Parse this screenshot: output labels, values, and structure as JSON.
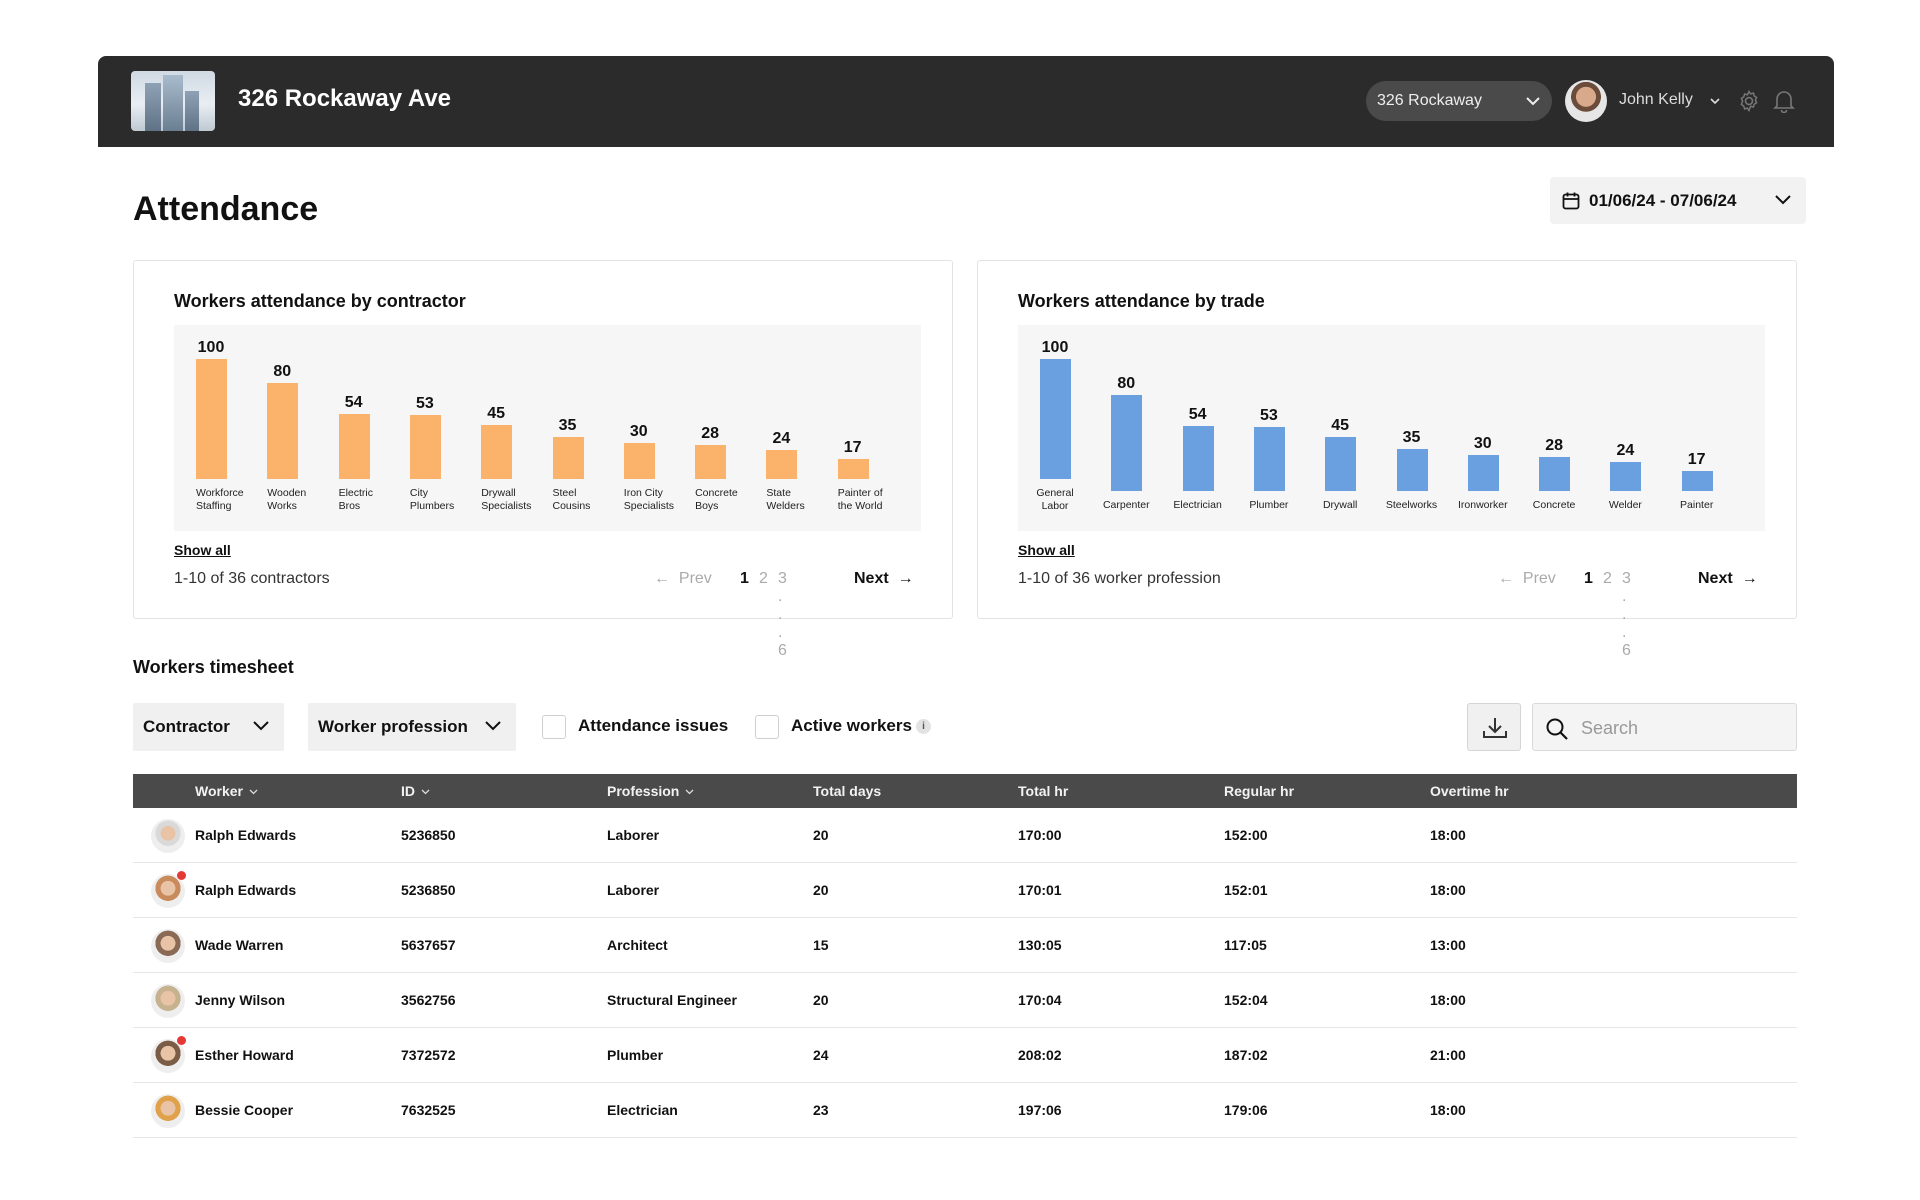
{
  "header": {
    "site_title": "326 Rockaway Ave",
    "site_select": "326 Rockaway",
    "user_name": "John Kelly"
  },
  "page": {
    "title": "Attendance",
    "date_range": "01/06/24 - 07/06/24"
  },
  "contractor_card": {
    "title": "Workers attendance by contractor",
    "show_all": "Show all",
    "range_text": "1-10 of 36 contractors",
    "pager": {
      "prev": "Prev",
      "pages": [
        "1",
        "2",
        "3 . . . 6"
      ],
      "next": "Next"
    }
  },
  "trade_card": {
    "title": "Workers attendance by trade",
    "show_all": "Show all",
    "range_text": "1-10 of 36 worker profession",
    "pager": {
      "prev": "Prev",
      "pages": [
        "1",
        "2",
        "3 . . . 6"
      ],
      "next": "Next"
    }
  },
  "chart_data": [
    {
      "type": "bar",
      "title": "Workers attendance by contractor",
      "categories": [
        "Workforce Staffing",
        "Wooden Works",
        "Electric Bros",
        "City Plumbers",
        "Drywall Specialists",
        "Steel Cousins",
        "Iron City Specialists",
        "Concrete Boys",
        "State Welders",
        "Painter of the World"
      ],
      "category_lines": [
        [
          "Workforce",
          "Staffing"
        ],
        [
          "Wooden",
          "Works"
        ],
        [
          "Electric",
          "Bros"
        ],
        [
          "City",
          "Plumbers"
        ],
        [
          "Drywall",
          "Specialists"
        ],
        [
          "Steel",
          "Cousins"
        ],
        [
          "Iron City",
          "Specialists"
        ],
        [
          "Concrete",
          "Boys"
        ],
        [
          "State",
          "Welders"
        ],
        [
          "Painter of",
          "the World"
        ]
      ],
      "values": [
        100,
        80,
        54,
        53,
        45,
        35,
        30,
        28,
        24,
        17
      ],
      "color": "#fbb36b",
      "grid": false
    },
    {
      "type": "bar",
      "title": "Workers attendance by trade",
      "categories": [
        "General Labor",
        "Carpenter",
        "Electrician",
        "Plumber",
        "Drywall",
        "Steelworks",
        "Ironworker",
        "Concrete",
        "Welder",
        "Painter"
      ],
      "category_lines": [
        [
          "General",
          "Labor"
        ],
        [
          "Carpenter"
        ],
        [
          "Electrician"
        ],
        [
          "Plumber"
        ],
        [
          "Drywall"
        ],
        [
          "Steelworks"
        ],
        [
          "Ironworker"
        ],
        [
          "Concrete"
        ],
        [
          "Welder"
        ],
        [
          "Painter"
        ]
      ],
      "values": [
        100,
        80,
        54,
        53,
        45,
        35,
        30,
        28,
        24,
        17
      ],
      "color": "#6a9fe0",
      "grid": false
    }
  ],
  "timesheet": {
    "title": "Workers timesheet",
    "filters": {
      "contractor": "Contractor",
      "profession": "Worker profession",
      "attendance_issues": "Attendance issues",
      "active_workers": "Active workers",
      "info": "i"
    },
    "search_placeholder": "Search",
    "columns": {
      "worker": "Worker",
      "id": "ID",
      "profession": "Profession",
      "total_days": "Total days",
      "total_hr": "Total hr",
      "regular_hr": "Regular hr",
      "overtime_hr": "Overtime hr"
    },
    "rows": [
      {
        "worker": "Ralph Edwards",
        "id": "5236850",
        "profession": "Laborer",
        "total_days": "20",
        "total_hr": "170:00",
        "regular_hr": "152:00",
        "overtime_hr": "18:00",
        "alert": false
      },
      {
        "worker": "Ralph Edwards",
        "id": "5236850",
        "profession": "Laborer",
        "total_days": "20",
        "total_hr": "170:01",
        "regular_hr": "152:01",
        "overtime_hr": "18:00",
        "alert": true
      },
      {
        "worker": "Wade Warren",
        "id": "5637657",
        "profession": "Architect",
        "total_days": "15",
        "total_hr": "130:05",
        "regular_hr": "117:05",
        "overtime_hr": "13:00",
        "alert": false
      },
      {
        "worker": "Jenny Wilson",
        "id": "3562756",
        "profession": "Structural Engineer",
        "total_days": "20",
        "total_hr": "170:04",
        "regular_hr": "152:04",
        "overtime_hr": "18:00",
        "alert": false
      },
      {
        "worker": "Esther Howard",
        "id": "7372572",
        "profession": "Plumber",
        "total_days": "24",
        "total_hr": "208:02",
        "regular_hr": "187:02",
        "overtime_hr": "21:00",
        "alert": true
      },
      {
        "worker": "Bessie Cooper",
        "id": "7632525",
        "profession": "Electrician",
        "total_days": "23",
        "total_hr": "197:06",
        "regular_hr": "179:06",
        "overtime_hr": "18:00",
        "alert": false
      }
    ]
  }
}
